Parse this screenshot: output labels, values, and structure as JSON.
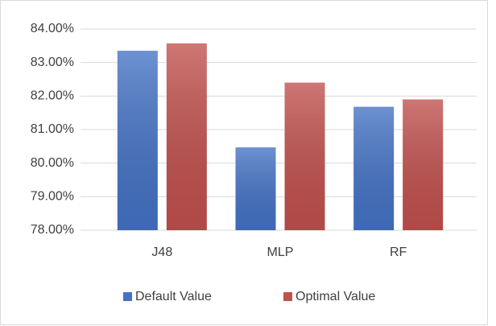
{
  "chart_data": {
    "type": "bar",
    "categories": [
      "J48",
      "MLP",
      "RF"
    ],
    "series": [
      {
        "name": "Default Value",
        "color": "#4472c4",
        "values": [
          83.35,
          80.47,
          81.68
        ]
      },
      {
        "name": "Optimal Value",
        "color": "#c0504d",
        "values": [
          83.57,
          82.4,
          81.9
        ]
      }
    ],
    "ylim": [
      78,
      84
    ],
    "yticks": [
      {
        "value": 78,
        "label": "78.00%"
      },
      {
        "value": 79,
        "label": "79.00%"
      },
      {
        "value": 80,
        "label": "80.00%"
      },
      {
        "value": 81,
        "label": "81.00%"
      },
      {
        "value": 82,
        "label": "82.00%"
      },
      {
        "value": 83,
        "label": "83.00%"
      },
      {
        "value": 84,
        "label": "84.00%"
      }
    ],
    "grid": true,
    "legend": "bottom"
  }
}
